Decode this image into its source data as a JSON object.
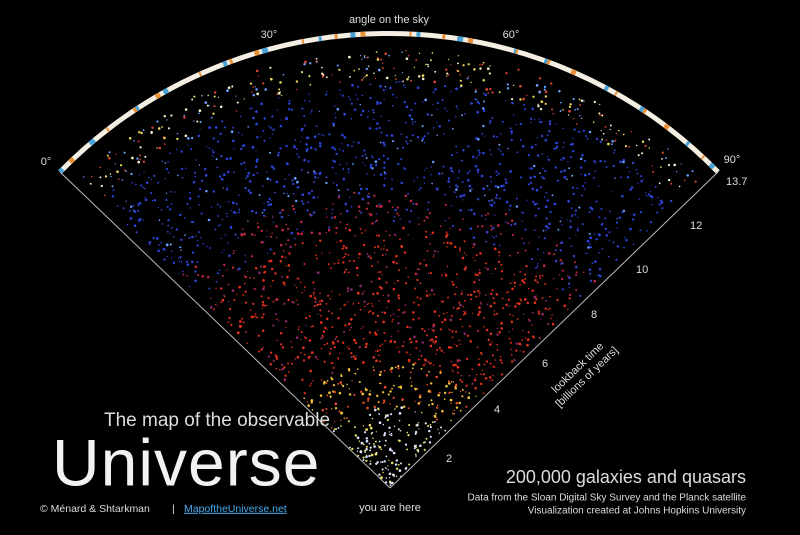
{
  "header": {
    "angle_label": "angle on the sky",
    "angles": [
      "0°",
      "30°",
      "60°",
      "90°"
    ]
  },
  "lookback": {
    "ticks": [
      "13.7",
      "12",
      "10",
      "8",
      "6",
      "4",
      "2"
    ],
    "label": "lookback time",
    "unit": "[billions of years]"
  },
  "apex_label": "you are here",
  "title": {
    "line1": "The map of the observable",
    "line2": "Universe",
    "credit": "© Ménard & Shtarkman",
    "separator": "|",
    "link": "MapoftheUniverse.net"
  },
  "caption": {
    "headline": "200,000 galaxies and quasars",
    "line1": "Data from the Sloan Digital Sky Survey and the Planck satellite",
    "line2": "Visualization created at Johns Hopkins University"
  }
}
